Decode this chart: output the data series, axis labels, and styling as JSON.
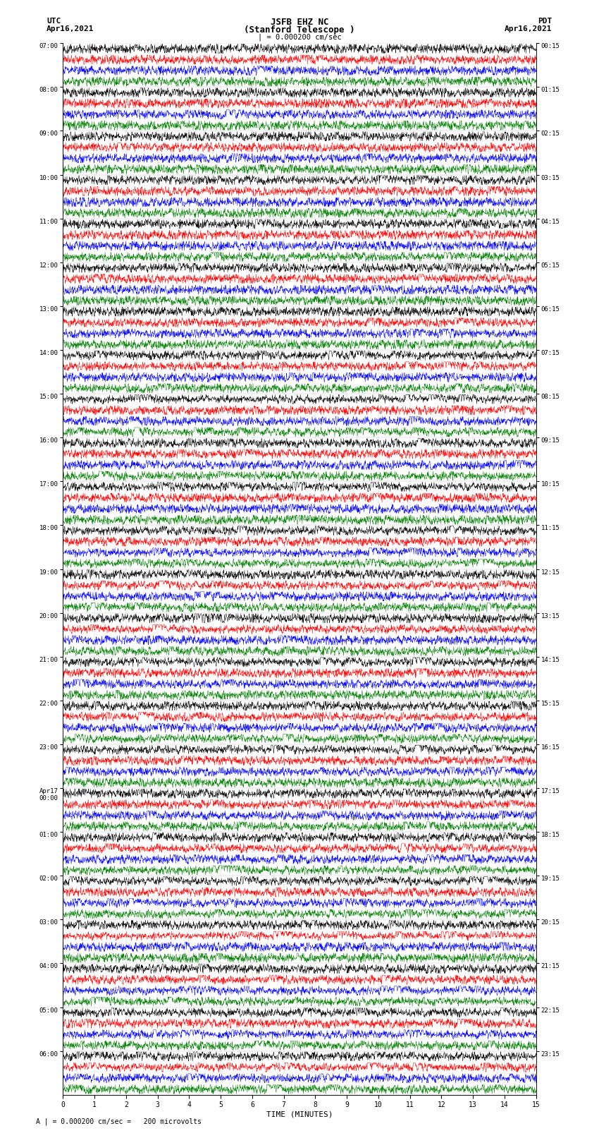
{
  "title_line1": "JSFB EHZ NC",
  "title_line2": "(Stanford Telescope )",
  "title_line3": "| = 0.000200 cm/sec",
  "left_header_line1": "UTC",
  "left_header_line2": "Apr16,2021",
  "right_header_line1": "PDT",
  "right_header_line2": "Apr16,2021",
  "xlabel": "TIME (MINUTES)",
  "footer": "A | = 0.000200 cm/sec =   200 microvolts",
  "xlim": [
    0,
    15
  ],
  "xticks": [
    0,
    1,
    2,
    3,
    4,
    5,
    6,
    7,
    8,
    9,
    10,
    11,
    12,
    13,
    14,
    15
  ],
  "colors": [
    "black",
    "red",
    "blue",
    "green"
  ],
  "utc_labels": [
    "07:00",
    "08:00",
    "09:00",
    "10:00",
    "11:00",
    "12:00",
    "13:00",
    "14:00",
    "15:00",
    "16:00",
    "17:00",
    "18:00",
    "19:00",
    "20:00",
    "21:00",
    "22:00",
    "23:00",
    "Apr17\n00:00",
    "01:00",
    "02:00",
    "03:00",
    "04:00",
    "05:00",
    "06:00"
  ],
  "pdt_labels": [
    "00:15",
    "01:15",
    "02:15",
    "03:15",
    "04:15",
    "05:15",
    "06:15",
    "07:15",
    "08:15",
    "09:15",
    "10:15",
    "11:15",
    "12:15",
    "13:15",
    "14:15",
    "15:15",
    "16:15",
    "17:15",
    "18:15",
    "19:15",
    "20:15",
    "21:15",
    "22:15",
    "23:15"
  ],
  "n_rows": 96,
  "n_hours": 24,
  "bg_color": "white",
  "grid_color": "#999999",
  "seed": 42,
  "n_points": 2000
}
